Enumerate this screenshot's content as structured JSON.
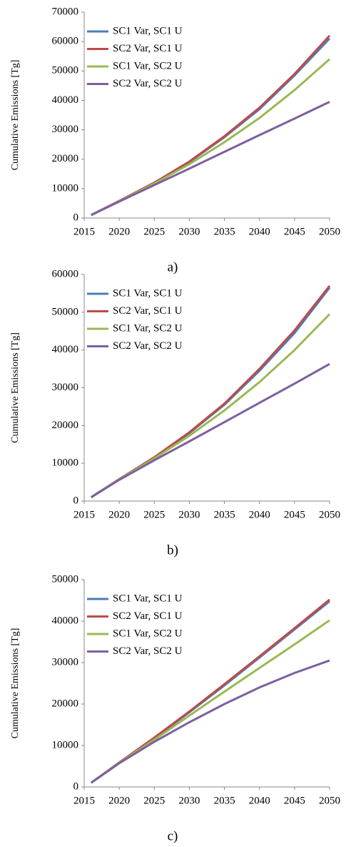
{
  "chart_data": [
    {
      "type": "line",
      "caption": "a)",
      "y_label": "Cumulative Emissions  [Tg]",
      "x": [
        2016,
        2020,
        2025,
        2030,
        2035,
        2040,
        2045,
        2050
      ],
      "xlim": [
        2015,
        2050
      ],
      "xticks": [
        2015,
        2020,
        2025,
        2030,
        2035,
        2040,
        2045,
        2050
      ],
      "ylim": [
        0,
        70000
      ],
      "yticks": [
        0,
        10000,
        20000,
        30000,
        40000,
        50000,
        60000,
        70000
      ],
      "legend": "upper left",
      "series": [
        {
          "name": "SC1 Var, SC1 U",
          "color": "#4a7ebb",
          "values": [
            1000,
            5800,
            12000,
            19000,
            27500,
            37000,
            48500,
            61000
          ]
        },
        {
          "name": "SC2 Var, SC1 U",
          "color": "#be4b48",
          "values": [
            1000,
            5800,
            12000,
            19200,
            27800,
            37500,
            49000,
            62000
          ]
        },
        {
          "name": "SC1 Var, SC2 U",
          "color": "#98b954",
          "values": [
            1000,
            5700,
            11700,
            18300,
            25800,
            34000,
            43500,
            54000
          ]
        },
        {
          "name": "SC2 Var, SC2 U",
          "color": "#7d60a0",
          "values": [
            1000,
            5600,
            11200,
            16800,
            22500,
            28200,
            33800,
            39500
          ]
        }
      ]
    },
    {
      "type": "line",
      "caption": "b)",
      "y_label": "Cumulative  Emissions  [Tg]",
      "x": [
        2016,
        2020,
        2025,
        2030,
        2035,
        2040,
        2045,
        2050
      ],
      "xlim": [
        2015,
        2050
      ],
      "xticks": [
        2015,
        2020,
        2025,
        2030,
        2035,
        2040,
        2045,
        2050
      ],
      "ylim": [
        0,
        60000
      ],
      "yticks": [
        0,
        10000,
        20000,
        30000,
        40000,
        50000,
        60000
      ],
      "legend": "upper left",
      "series": [
        {
          "name": "SC1 Var, SC1 U",
          "color": "#4a7ebb",
          "values": [
            1000,
            5800,
            11500,
            18000,
            25500,
            34500,
            44500,
            56500
          ]
        },
        {
          "name": "SC2 Var, SC1 U",
          "color": "#be4b48",
          "values": [
            1000,
            5800,
            11600,
            18200,
            25800,
            35000,
            45200,
            57000
          ]
        },
        {
          "name": "SC1 Var, SC2 U",
          "color": "#98b954",
          "values": [
            1000,
            5700,
            11300,
            17300,
            24000,
            31500,
            40000,
            49500
          ]
        },
        {
          "name": "SC2 Var, SC2 U",
          "color": "#7d60a0",
          "values": [
            1000,
            5600,
            10800,
            15800,
            20900,
            26000,
            31100,
            36300
          ]
        }
      ]
    },
    {
      "type": "line",
      "caption": "c)",
      "y_label": "Cumulative  Emissions  [Tg]",
      "x": [
        2016,
        2020,
        2025,
        2030,
        2035,
        2040,
        2045,
        2050
      ],
      "xlim": [
        2015,
        2050
      ],
      "xticks": [
        2015,
        2020,
        2025,
        2030,
        2035,
        2040,
        2045,
        2050
      ],
      "ylim": [
        0,
        50000
      ],
      "yticks": [
        0,
        10000,
        20000,
        30000,
        40000,
        50000
      ],
      "legend": "upper left",
      "series": [
        {
          "name": "SC1 Var, SC1 U",
          "color": "#4a7ebb",
          "values": [
            1000,
            5900,
            11800,
            18000,
            24500,
            31200,
            38000,
            44800
          ]
        },
        {
          "name": "SC2 Var, SC1 U",
          "color": "#be4b48",
          "values": [
            1000,
            5900,
            11900,
            18200,
            24800,
            31500,
            38300,
            45200
          ]
        },
        {
          "name": "SC1 Var, SC2 U",
          "color": "#98b954",
          "values": [
            1000,
            5800,
            11400,
            17200,
            23000,
            28700,
            34400,
            40200
          ]
        },
        {
          "name": "SC2 Var, SC2 U",
          "color": "#7d60a0",
          "values": [
            1000,
            5700,
            10900,
            15600,
            20000,
            24000,
            27500,
            30500
          ]
        }
      ]
    }
  ]
}
